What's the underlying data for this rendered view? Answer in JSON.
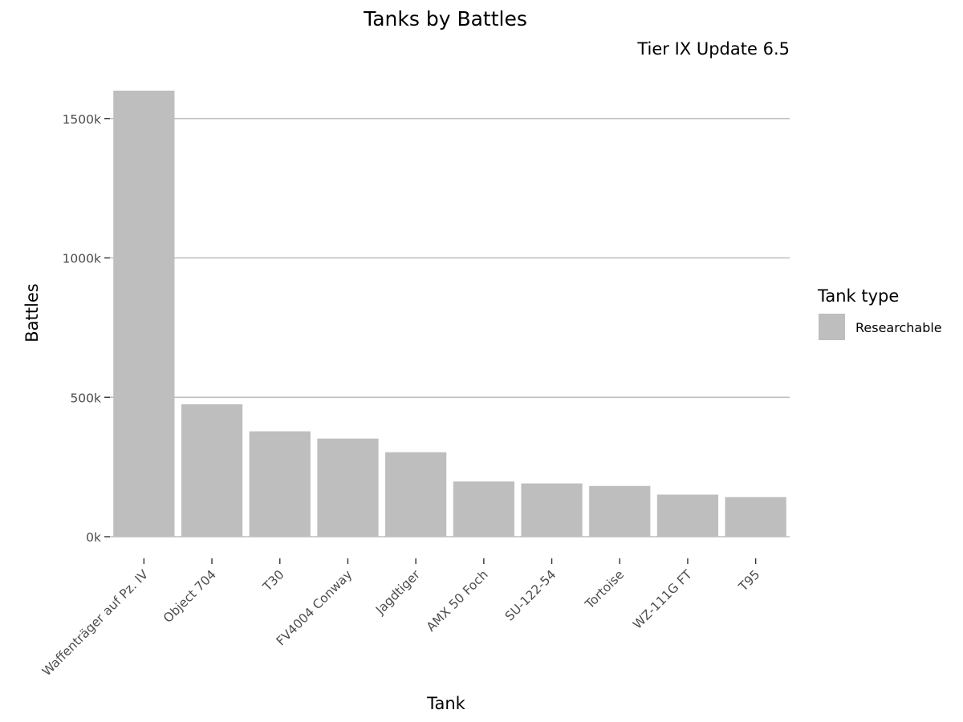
{
  "chart_data": {
    "type": "bar",
    "title": "Tanks by Battles",
    "subtitle": "Tier IX Update 6.5",
    "xlabel": "Tank",
    "ylabel": "Battles",
    "categories": [
      "Waffenträger auf Pz. IV",
      "Object 704",
      "T30",
      "FV4004 Conway",
      "Jagdtiger",
      "AMX 50 Foch",
      "SU-122-54",
      "Tortoise",
      "WZ-111G FT",
      "T95"
    ],
    "values": [
      1600000,
      475000,
      378000,
      352000,
      303000,
      198000,
      191000,
      182000,
      151000,
      142000
    ],
    "ylim": [
      0,
      1600000
    ],
    "yticks": [
      0,
      500000,
      1000000,
      1500000
    ],
    "ytick_labels": [
      "0k",
      "500k",
      "1000k",
      "1500k"
    ],
    "grid": "horizontal",
    "bar_color": "#bebebe",
    "gridline_color": "#bebebe",
    "legend": {
      "title": "Tank type",
      "entries": [
        "Researchable"
      ],
      "position": "right"
    }
  }
}
